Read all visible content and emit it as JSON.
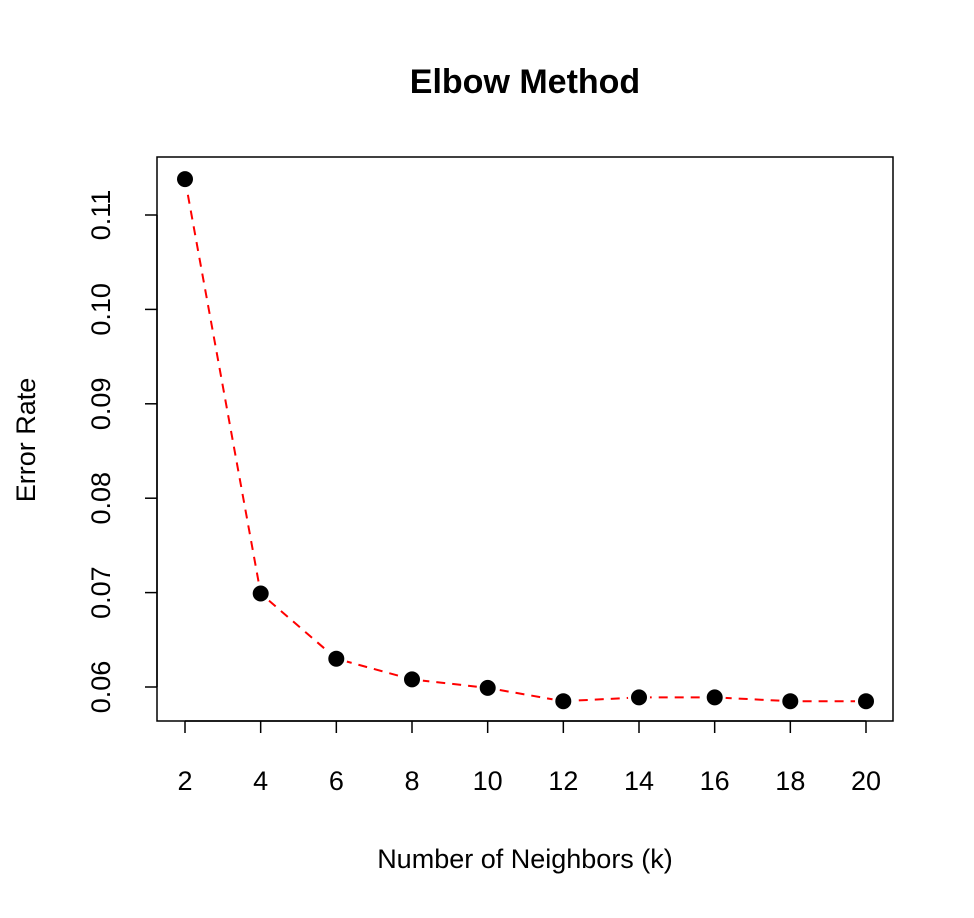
{
  "chart_data": {
    "type": "line",
    "title": "Elbow Method",
    "xlabel": "Number of Neighbors (k)",
    "ylabel": "Error Rate",
    "x": [
      2,
      4,
      6,
      8,
      10,
      12,
      14,
      16,
      18,
      20
    ],
    "series": [
      {
        "values": [
          0.1138,
          0.0699,
          0.063,
          0.0608,
          0.0599,
          0.0585,
          0.0589,
          0.0589,
          0.0585,
          0.0585
        ]
      }
    ],
    "xlim": [
      2,
      20
    ],
    "ylim": [
      0.058,
      0.1138
    ],
    "xticks": [
      "2",
      "4",
      "6",
      "8",
      "10",
      "12",
      "14",
      "16",
      "18",
      "20"
    ],
    "yticks": [
      "0.06",
      "0.07",
      "0.08",
      "0.09",
      "0.10",
      "0.11"
    ],
    "line_color": "#ff0000",
    "line_style": "dashed",
    "point_color": "#000000",
    "grid": false,
    "legend": "none"
  }
}
